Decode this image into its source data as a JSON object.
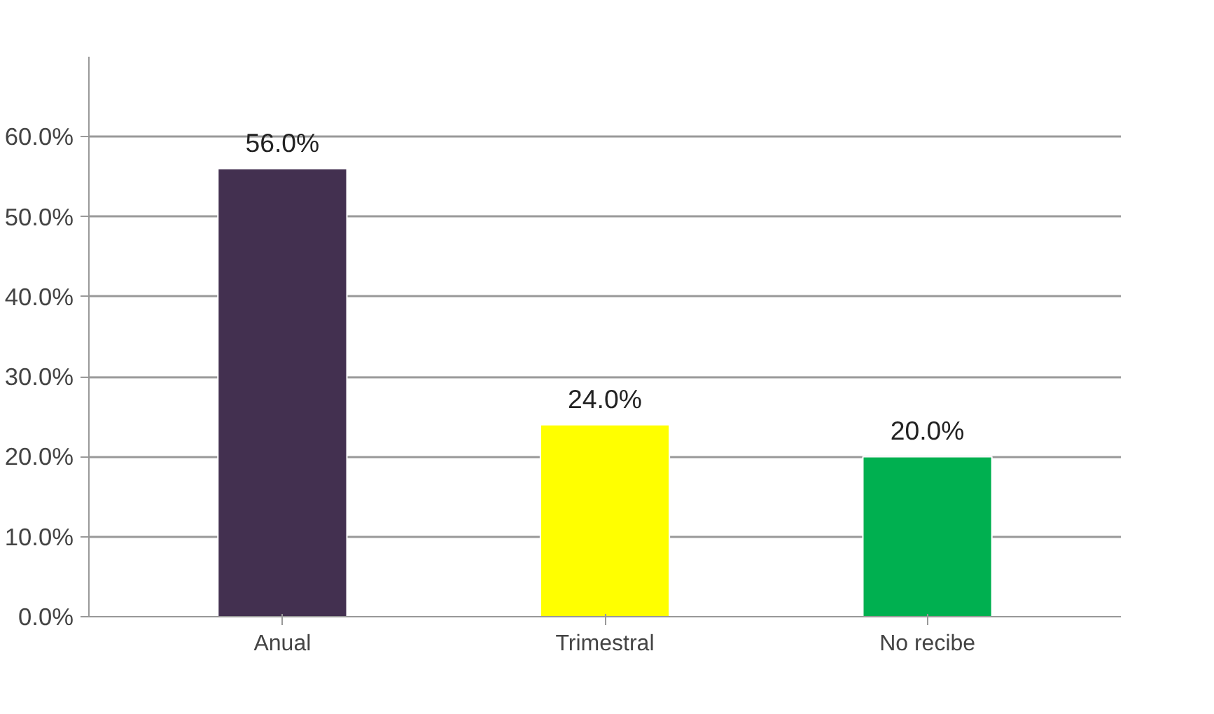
{
  "chart_data": {
    "type": "bar",
    "categories": [
      "Anual",
      "Trimestral",
      "No recibe"
    ],
    "values": [
      56,
      24,
      20
    ],
    "colors": [
      "#433050",
      "#ffff00",
      "#00b050"
    ],
    "value_labels": [
      "56.0%",
      "24.0%",
      "20.0%"
    ],
    "ylim": [
      0,
      70
    ],
    "yticks": [
      {
        "value": 0,
        "label": "0.0%"
      },
      {
        "value": 10,
        "label": "10.0%"
      },
      {
        "value": 20,
        "label": "20.0%"
      },
      {
        "value": 30,
        "label": "30.0%"
      },
      {
        "value": 40,
        "label": "40.0%"
      },
      {
        "value": 50,
        "label": "50.0%"
      },
      {
        "value": 60,
        "label": "60.0%"
      }
    ],
    "grid": "y"
  }
}
